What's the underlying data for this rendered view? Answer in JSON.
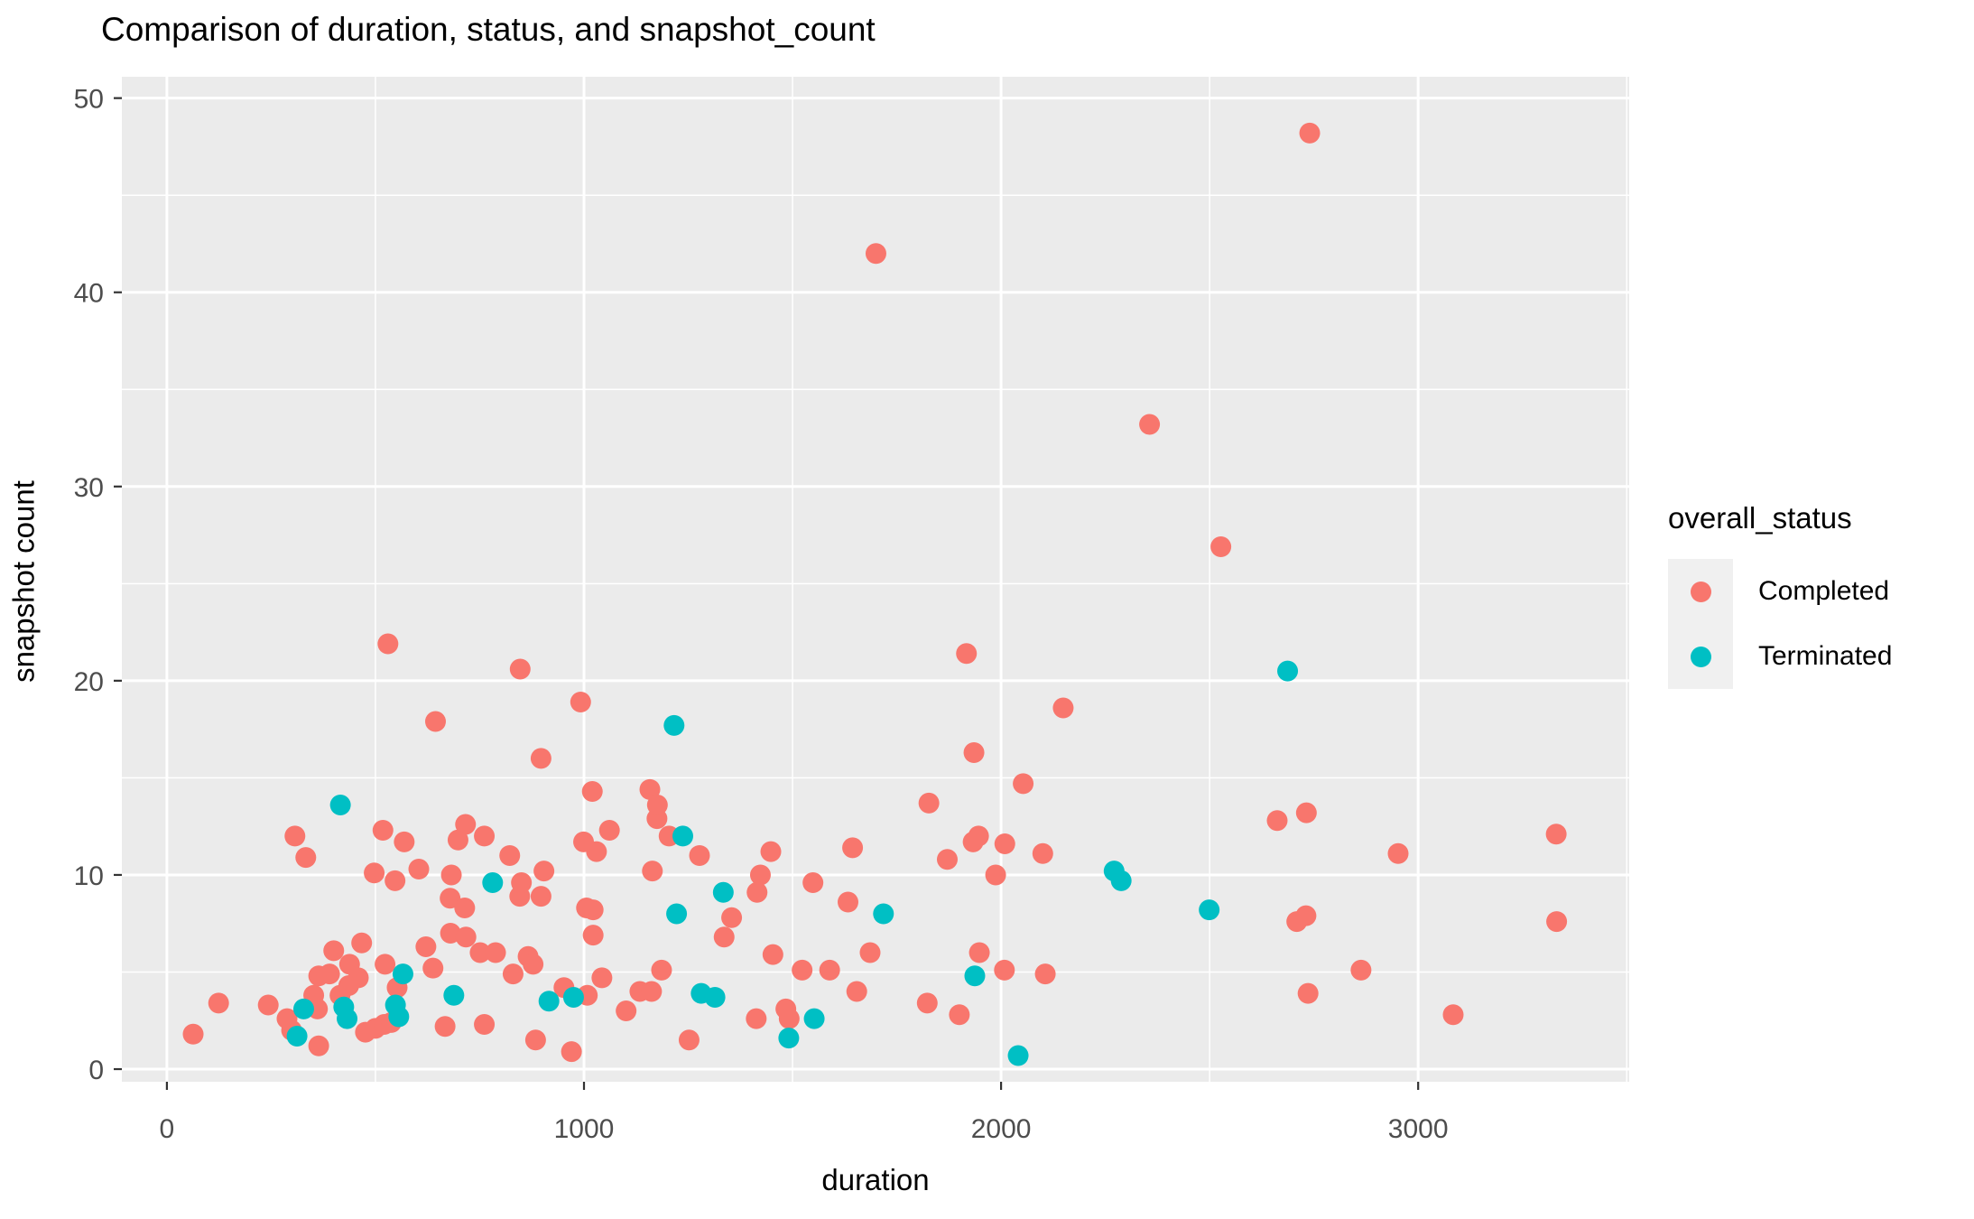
{
  "title": "Comparison of duration, status, and snapshot_count",
  "colors": {
    "completed": "#F8766D",
    "terminated": "#00BFC4",
    "panel_bg": "#EBEBEB",
    "grid": "#FFFFFF",
    "tick_text": "#4D4D4D",
    "axis_tick": "#333333",
    "legend_key_bg": "#F0F0F0"
  },
  "legend": {
    "title": "overall_status",
    "items": [
      {
        "label": "Completed",
        "color": "#F8766D"
      },
      {
        "label": "Terminated",
        "color": "#00BFC4"
      }
    ]
  },
  "axes": {
    "x": {
      "label": "duration",
      "ticks": [
        0,
        1000,
        2000,
        3000
      ]
    },
    "y": {
      "label": "snapshot count",
      "ticks": [
        0,
        10,
        20,
        30,
        40,
        50
      ]
    }
  },
  "chart_data": {
    "type": "scatter",
    "title": "Comparison of duration, status, and snapshot_count",
    "xlabel": "duration",
    "ylabel": "snapshot count",
    "xlim": [
      -108,
      3506
    ],
    "ylim": [
      -0.65,
      51.1
    ],
    "x_ticks": [
      0,
      1000,
      2000,
      3000
    ],
    "x_minor_ticks": [
      500,
      1500,
      2500,
      3500
    ],
    "y_ticks": [
      0,
      10,
      20,
      30,
      40,
      50
    ],
    "y_minor_ticks": [
      5,
      15,
      25,
      35,
      45
    ],
    "grid": true,
    "legend_position": "right",
    "point_radius_px": 11.5,
    "series": [
      {
        "name": "Completed",
        "color": "#F8766D",
        "points": [
          [
            63,
            1.8
          ],
          [
            124,
            3.4
          ],
          [
            243,
            3.3
          ],
          [
            288,
            2.6
          ],
          [
            299,
            2.0
          ],
          [
            307,
            12.0
          ],
          [
            333,
            10.9
          ],
          [
            352,
            3.8
          ],
          [
            361,
            3.1
          ],
          [
            364,
            4.8
          ],
          [
            364,
            1.2
          ],
          [
            390,
            4.9
          ],
          [
            400,
            6.1
          ],
          [
            415,
            3.8
          ],
          [
            436,
            4.3
          ],
          [
            438,
            5.4
          ],
          [
            459,
            4.7
          ],
          [
            467,
            6.5
          ],
          [
            476,
            1.9
          ],
          [
            497,
            10.1
          ],
          [
            500,
            2.1
          ],
          [
            518,
            12.3
          ],
          [
            521,
            2.3
          ],
          [
            523,
            5.4
          ],
          [
            530,
            21.9
          ],
          [
            538,
            2.4
          ],
          [
            547,
            9.7
          ],
          [
            552,
            4.2
          ],
          [
            569,
            11.7
          ],
          [
            604,
            10.3
          ],
          [
            621,
            6.3
          ],
          [
            638,
            5.2
          ],
          [
            644,
            17.9
          ],
          [
            667,
            2.2
          ],
          [
            679,
            8.8
          ],
          [
            680,
            7.0
          ],
          [
            682,
            10.0
          ],
          [
            698,
            11.8
          ],
          [
            714,
            8.3
          ],
          [
            716,
            12.6
          ],
          [
            717,
            6.8
          ],
          [
            751,
            6.0
          ],
          [
            761,
            12.0
          ],
          [
            761,
            2.3
          ],
          [
            788,
            6.0
          ],
          [
            822,
            11.0
          ],
          [
            830,
            4.9
          ],
          [
            846,
            8.9
          ],
          [
            847,
            20.6
          ],
          [
            850,
            9.6
          ],
          [
            866,
            5.8
          ],
          [
            878,
            5.4
          ],
          [
            884,
            1.5
          ],
          [
            897,
            8.9
          ],
          [
            897,
            16.0
          ],
          [
            904,
            10.2
          ],
          [
            952,
            4.2
          ],
          [
            970,
            0.9
          ],
          [
            992,
            18.9
          ],
          [
            999,
            11.7
          ],
          [
            1006,
            8.3
          ],
          [
            1008,
            3.8
          ],
          [
            1020,
            14.3
          ],
          [
            1022,
            8.2
          ],
          [
            1022,
            6.9
          ],
          [
            1030,
            11.2
          ],
          [
            1043,
            4.7
          ],
          [
            1061,
            12.3
          ],
          [
            1101,
            3.0
          ],
          [
            1134,
            4.0
          ],
          [
            1158,
            14.4
          ],
          [
            1162,
            4.0
          ],
          [
            1164,
            10.2
          ],
          [
            1175,
            12.9
          ],
          [
            1176,
            13.6
          ],
          [
            1186,
            5.1
          ],
          [
            1204,
            12.0
          ],
          [
            1252,
            1.5
          ],
          [
            1277,
            11.0
          ],
          [
            1336,
            6.8
          ],
          [
            1354,
            7.8
          ],
          [
            1413,
            2.6
          ],
          [
            1415,
            9.1
          ],
          [
            1423,
            10.0
          ],
          [
            1448,
            11.2
          ],
          [
            1453,
            5.9
          ],
          [
            1484,
            3.1
          ],
          [
            1492,
            2.6
          ],
          [
            1523,
            5.1
          ],
          [
            1549,
            9.6
          ],
          [
            1589,
            5.1
          ],
          [
            1633,
            8.6
          ],
          [
            1644,
            11.4
          ],
          [
            1654,
            4.0
          ],
          [
            1686,
            6.0
          ],
          [
            1700,
            42.0
          ],
          [
            1823,
            3.4
          ],
          [
            1827,
            13.7
          ],
          [
            1871,
            10.8
          ],
          [
            1900,
            2.8
          ],
          [
            1917,
            21.4
          ],
          [
            1933,
            11.7
          ],
          [
            1935,
            16.3
          ],
          [
            1946,
            12.0
          ],
          [
            1948,
            6.0
          ],
          [
            1987,
            10.0
          ],
          [
            2008,
            5.1
          ],
          [
            2009,
            11.6
          ],
          [
            2053,
            14.7
          ],
          [
            2100,
            11.1
          ],
          [
            2106,
            4.9
          ],
          [
            2149,
            18.6
          ],
          [
            2356,
            33.2
          ],
          [
            2527,
            26.9
          ],
          [
            2662,
            12.8
          ],
          [
            2709,
            7.6
          ],
          [
            2731,
            7.9
          ],
          [
            2732,
            13.2
          ],
          [
            2736,
            3.9
          ],
          [
            2740,
            48.2
          ],
          [
            2863,
            5.1
          ],
          [
            2952,
            11.1
          ],
          [
            3084,
            2.8
          ],
          [
            3331,
            12.1
          ],
          [
            3332,
            7.6
          ]
        ]
      },
      {
        "name": "Terminated",
        "color": "#00BFC4",
        "points": [
          [
            312,
            1.7
          ],
          [
            328,
            3.1
          ],
          [
            416,
            13.6
          ],
          [
            424,
            3.2
          ],
          [
            432,
            2.6
          ],
          [
            548,
            3.3
          ],
          [
            556,
            2.7
          ],
          [
            566,
            4.9
          ],
          [
            688,
            3.8
          ],
          [
            781,
            9.6
          ],
          [
            916,
            3.5
          ],
          [
            975,
            3.7
          ],
          [
            1216,
            17.7
          ],
          [
            1222,
            8.0
          ],
          [
            1237,
            12.0
          ],
          [
            1281,
            3.9
          ],
          [
            1314,
            3.7
          ],
          [
            1334,
            9.1
          ],
          [
            1491,
            1.6
          ],
          [
            1552,
            2.6
          ],
          [
            1718,
            8.0
          ],
          [
            1937,
            4.8
          ],
          [
            2041,
            0.7
          ],
          [
            2271,
            10.2
          ],
          [
            2288,
            9.7
          ],
          [
            2499,
            8.2
          ],
          [
            2687,
            20.5
          ]
        ]
      }
    ]
  }
}
